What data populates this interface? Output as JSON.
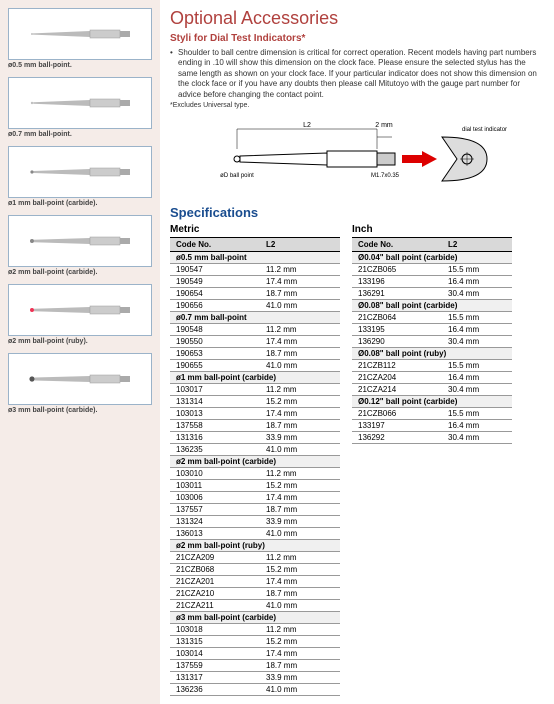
{
  "title": "Optional Accessories",
  "subtitle": "Styli for Dial Test Indicators*",
  "bullet": "Shoulder to ball centre dimension is critical for correct operation. Recent models having part numbers ending in .10 will show this dimension on the clock face. Please ensure the selected stylus has the same length as shown on your clock face. If your particular indicator does not show this dimension on the clock face or if you have any doubts then please call Mitutoyo with the gauge part number for advice before changing the contact point.",
  "note": "*Excludes Universal type.",
  "spec_title": "Specifications",
  "diagram": {
    "l2": "L2",
    "two_mm": "2 mm",
    "dial_ind": "dial test indicator",
    "ball": "øD ball point",
    "thread": "M1.7x0.35"
  },
  "thumbs": [
    {
      "caption": "ø0.5 mm ball-point.",
      "tip_r": 1.0,
      "tip_fill": "#c0c0c0",
      "shaft": "thin"
    },
    {
      "caption": "ø0.7 mm ball-point.",
      "tip_r": 1.2,
      "tip_fill": "#c0c0c0",
      "shaft": "thin"
    },
    {
      "caption": "ø1 mm ball-point (carbide).",
      "tip_r": 1.6,
      "tip_fill": "#888",
      "shaft": "taper"
    },
    {
      "caption": "ø2 mm ball-point (carbide).",
      "tip_r": 2.0,
      "tip_fill": "#888",
      "shaft": "taper"
    },
    {
      "caption": "ø2 mm ball-point (ruby).",
      "tip_r": 2.0,
      "tip_fill": "#e35",
      "shaft": "taper"
    },
    {
      "caption": "ø3 mm ball-point (carbide).",
      "tip_r": 2.6,
      "tip_fill": "#555",
      "shaft": "taper"
    }
  ],
  "metric": {
    "label": "Metric",
    "headers": [
      "Code No.",
      "L2"
    ],
    "groups": [
      {
        "title": "ø0.5 mm ball-point",
        "rows": [
          [
            "190547",
            "11.2 mm"
          ],
          [
            "190549",
            "17.4 mm"
          ],
          [
            "190654",
            "18.7 mm"
          ],
          [
            "190656",
            "41.0 mm"
          ]
        ]
      },
      {
        "title": "ø0.7 mm ball-point",
        "rows": [
          [
            "190548",
            "11.2 mm"
          ],
          [
            "190550",
            "17.4 mm"
          ],
          [
            "190653",
            "18.7 mm"
          ],
          [
            "190655",
            "41.0 mm"
          ]
        ]
      },
      {
        "title": "ø1 mm ball-point (carbide)",
        "rows": [
          [
            "103017",
            "11.2 mm"
          ],
          [
            "131314",
            "15.2 mm"
          ],
          [
            "103013",
            "17.4 mm"
          ],
          [
            "137558",
            "18.7 mm"
          ],
          [
            "131316",
            "33.9 mm"
          ],
          [
            "136235",
            "41.0 mm"
          ]
        ]
      },
      {
        "title": "ø2 mm ball-point (carbide)",
        "rows": [
          [
            "103010",
            "11.2 mm"
          ],
          [
            "103011",
            "15.2 mm"
          ],
          [
            "103006",
            "17.4 mm"
          ],
          [
            "137557",
            "18.7 mm"
          ],
          [
            "131324",
            "33.9 mm"
          ],
          [
            "136013",
            "41.0 mm"
          ]
        ]
      },
      {
        "title": "ø2 mm ball-point (ruby)",
        "rows": [
          [
            "21CZA209",
            "11.2 mm"
          ],
          [
            "21CZB068",
            "15.2 mm"
          ],
          [
            "21CZA201",
            "17.4 mm"
          ],
          [
            "21CZA210",
            "18.7 mm"
          ],
          [
            "21CZA211",
            "41.0 mm"
          ]
        ]
      },
      {
        "title": "ø3 mm ball-point (carbide)",
        "rows": [
          [
            "103018",
            "11.2 mm"
          ],
          [
            "131315",
            "15.2 mm"
          ],
          [
            "103014",
            "17.4 mm"
          ],
          [
            "137559",
            "18.7 mm"
          ],
          [
            "131317",
            "33.9 mm"
          ],
          [
            "136236",
            "41.0 mm"
          ]
        ]
      }
    ]
  },
  "inch": {
    "label": "Inch",
    "headers": [
      "Code No.",
      "L2"
    ],
    "groups": [
      {
        "title": "Ø0.04\" ball point (carbide)",
        "rows": [
          [
            "21CZB065",
            "15.5 mm"
          ],
          [
            "133196",
            "16.4 mm"
          ],
          [
            "136291",
            "30.4 mm"
          ]
        ]
      },
      {
        "title": "Ø0.08\" ball point (carbide)",
        "rows": [
          [
            "21CZB064",
            "15.5 mm"
          ],
          [
            "133195",
            "16.4 mm"
          ],
          [
            "136290",
            "30.4 mm"
          ]
        ]
      },
      {
        "title": "Ø0.08\" ball point (ruby)",
        "rows": [
          [
            "21CZB112",
            "15.5 mm"
          ],
          [
            "21CZA204",
            "16.4 mm"
          ],
          [
            "21CZA214",
            "30.4 mm"
          ]
        ]
      },
      {
        "title": "Ø0.12\" ball point (carbide)",
        "rows": [
          [
            "21CZB066",
            "15.5 mm"
          ],
          [
            "133197",
            "16.4 mm"
          ],
          [
            "136292",
            "30.4 mm"
          ]
        ]
      }
    ]
  }
}
